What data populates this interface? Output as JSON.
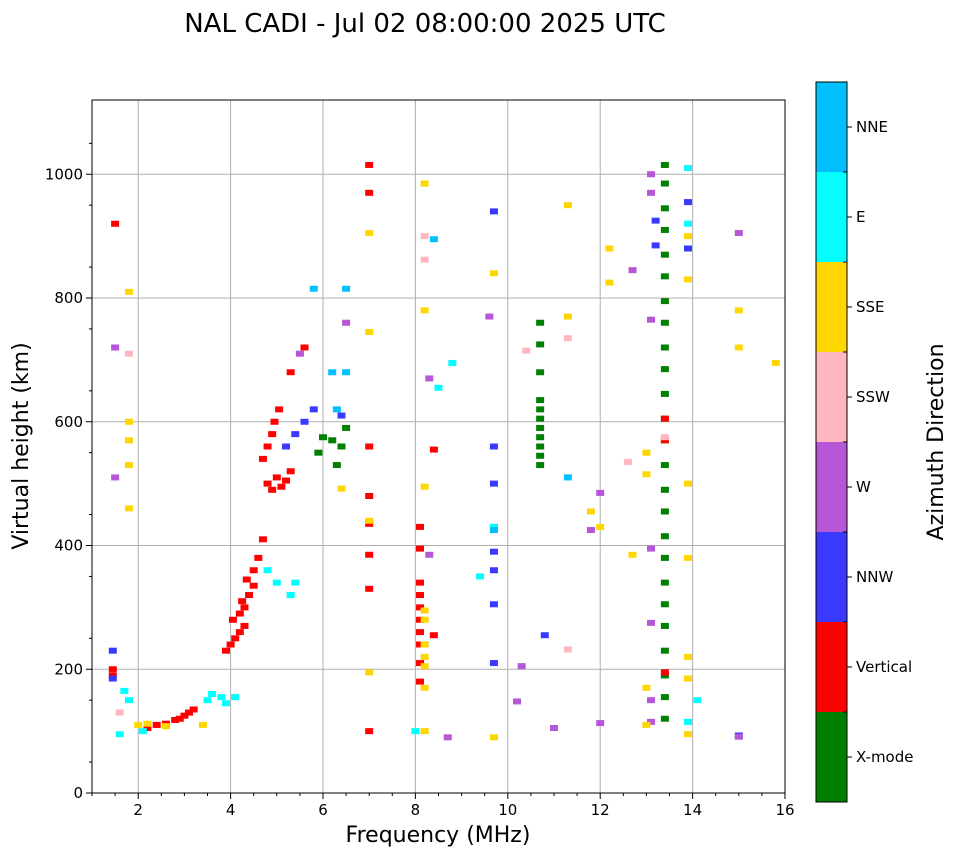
{
  "chart_data": {
    "type": "scatter",
    "title": "NAL CADI - Jul 02 08:00:00 2025 UTC",
    "xlabel": "Frequency (MHz)",
    "ylabel": "Virtual height (km)",
    "xlim": [
      1,
      16
    ],
    "ylim": [
      0,
      1120
    ],
    "xticks": [
      2,
      4,
      6,
      8,
      10,
      12,
      14,
      16
    ],
    "yticks": [
      0,
      200,
      400,
      600,
      800,
      1000
    ],
    "grid": true,
    "colorbar": {
      "label": "Azimuth Direction",
      "categories": [
        {
          "name": "X-mode",
          "color": "#008000"
        },
        {
          "name": "Vertical",
          "color": "#ff0000"
        },
        {
          "name": "NNW",
          "color": "#3a3aff"
        },
        {
          "name": "W",
          "color": "#b557d6"
        },
        {
          "name": "SSW",
          "color": "#ffb6c1"
        },
        {
          "name": "SSE",
          "color": "#ffd700"
        },
        {
          "name": "E",
          "color": "#00ffff"
        },
        {
          "name": "NNE",
          "color": "#00bfff"
        }
      ]
    },
    "series": [
      {
        "name": "X-mode",
        "points": [
          [
            6.3,
            530
          ],
          [
            6.4,
            560
          ],
          [
            6.2,
            570
          ],
          [
            6.5,
            590
          ],
          [
            5.9,
            550
          ],
          [
            6.0,
            575
          ],
          [
            10.7,
            530
          ],
          [
            10.7,
            545
          ],
          [
            10.7,
            560
          ],
          [
            10.7,
            575
          ],
          [
            10.7,
            590
          ],
          [
            10.7,
            605
          ],
          [
            10.7,
            620
          ],
          [
            10.7,
            635
          ],
          [
            10.7,
            680
          ],
          [
            10.7,
            725
          ],
          [
            10.7,
            760
          ],
          [
            13.4,
            120
          ],
          [
            13.4,
            155
          ],
          [
            13.4,
            190
          ],
          [
            13.4,
            230
          ],
          [
            13.4,
            270
          ],
          [
            13.4,
            305
          ],
          [
            13.4,
            340
          ],
          [
            13.4,
            380
          ],
          [
            13.4,
            415
          ],
          [
            13.4,
            455
          ],
          [
            13.4,
            490
          ],
          [
            13.4,
            530
          ],
          [
            13.4,
            570
          ],
          [
            13.4,
            605
          ],
          [
            13.4,
            645
          ],
          [
            13.4,
            685
          ],
          [
            13.4,
            720
          ],
          [
            13.4,
            760
          ],
          [
            13.4,
            795
          ],
          [
            13.4,
            835
          ],
          [
            13.4,
            870
          ],
          [
            13.4,
            910
          ],
          [
            13.4,
            945
          ],
          [
            13.4,
            985
          ],
          [
            13.4,
            1015
          ]
        ]
      },
      {
        "name": "Vertical",
        "points": [
          [
            1.5,
            920
          ],
          [
            1.45,
            200
          ],
          [
            1.45,
            190
          ],
          [
            2.2,
            105
          ],
          [
            2.4,
            110
          ],
          [
            2.6,
            112
          ],
          [
            2.8,
            118
          ],
          [
            2.9,
            120
          ],
          [
            3.0,
            125
          ],
          [
            3.1,
            130
          ],
          [
            3.2,
            135
          ],
          [
            3.9,
            230
          ],
          [
            4.0,
            240
          ],
          [
            4.1,
            250
          ],
          [
            4.2,
            260
          ],
          [
            4.3,
            270
          ],
          [
            4.05,
            280
          ],
          [
            4.2,
            290
          ],
          [
            4.3,
            300
          ],
          [
            4.25,
            310
          ],
          [
            4.4,
            320
          ],
          [
            4.5,
            335
          ],
          [
            4.35,
            345
          ],
          [
            4.5,
            360
          ],
          [
            4.6,
            380
          ],
          [
            4.7,
            410
          ],
          [
            4.8,
            500
          ],
          [
            4.9,
            490
          ],
          [
            5.0,
            510
          ],
          [
            5.1,
            495
          ],
          [
            5.2,
            505
          ],
          [
            5.3,
            520
          ],
          [
            4.7,
            540
          ],
          [
            4.8,
            560
          ],
          [
            4.9,
            580
          ],
          [
            4.95,
            600
          ],
          [
            5.05,
            620
          ],
          [
            5.3,
            680
          ],
          [
            5.6,
            720
          ],
          [
            7.0,
            100
          ],
          [
            7.0,
            330
          ],
          [
            7.0,
            385
          ],
          [
            7.0,
            435
          ],
          [
            7.0,
            480
          ],
          [
            7.0,
            560
          ],
          [
            7.0,
            970
          ],
          [
            7.0,
            1015
          ],
          [
            8.1,
            180
          ],
          [
            8.1,
            210
          ],
          [
            8.1,
            240
          ],
          [
            8.1,
            260
          ],
          [
            8.1,
            280
          ],
          [
            8.1,
            300
          ],
          [
            8.1,
            320
          ],
          [
            8.1,
            340
          ],
          [
            8.1,
            395
          ],
          [
            8.1,
            430
          ],
          [
            8.4,
            255
          ],
          [
            8.4,
            555
          ],
          [
            13.4,
            195
          ],
          [
            13.4,
            570
          ],
          [
            13.4,
            605
          ]
        ]
      },
      {
        "name": "NNW",
        "points": [
          [
            1.45,
            230
          ],
          [
            1.45,
            185
          ],
          [
            5.2,
            560
          ],
          [
            5.4,
            580
          ],
          [
            5.6,
            600
          ],
          [
            5.8,
            620
          ],
          [
            6.4,
            610
          ],
          [
            9.7,
            210
          ],
          [
            9.7,
            305
          ],
          [
            9.7,
            360
          ],
          [
            9.7,
            390
          ],
          [
            9.7,
            430
          ],
          [
            9.7,
            500
          ],
          [
            9.7,
            560
          ],
          [
            9.7,
            940
          ],
          [
            13.2,
            925
          ],
          [
            13.2,
            885
          ],
          [
            13.9,
            880
          ],
          [
            13.9,
            955
          ],
          [
            15.0,
            93
          ],
          [
            10.8,
            255
          ]
        ]
      },
      {
        "name": "W",
        "points": [
          [
            1.5,
            720
          ],
          [
            1.5,
            510
          ],
          [
            5.5,
            710
          ],
          [
            6.5,
            760
          ],
          [
            8.3,
            670
          ],
          [
            8.3,
            385
          ],
          [
            8.7,
            90
          ],
          [
            9.6,
            770
          ],
          [
            10.3,
            205
          ],
          [
            10.2,
            148
          ],
          [
            11.0,
            105
          ],
          [
            11.8,
            425
          ],
          [
            12.0,
            113
          ],
          [
            12.0,
            485
          ],
          [
            12.7,
            845
          ],
          [
            13.1,
            1000
          ],
          [
            13.1,
            970
          ],
          [
            13.1,
            765
          ],
          [
            13.1,
            395
          ],
          [
            13.1,
            275
          ],
          [
            13.1,
            150
          ],
          [
            13.1,
            115
          ],
          [
            15.0,
            905
          ],
          [
            15.0,
            91
          ]
        ]
      },
      {
        "name": "SSW",
        "points": [
          [
            1.8,
            710
          ],
          [
            1.6,
            130
          ],
          [
            8.2,
            900
          ],
          [
            8.2,
            862
          ],
          [
            10.4,
            715
          ],
          [
            11.3,
            232
          ],
          [
            11.3,
            735
          ],
          [
            12.6,
            535
          ],
          [
            13.4,
            575
          ]
        ]
      },
      {
        "name": "SSE",
        "points": [
          [
            1.8,
            600
          ],
          [
            1.8,
            570
          ],
          [
            1.8,
            530
          ],
          [
            1.8,
            460
          ],
          [
            1.8,
            810
          ],
          [
            2.0,
            110
          ],
          [
            2.2,
            112
          ],
          [
            2.6,
            108
          ],
          [
            3.4,
            110
          ],
          [
            6.4,
            492
          ],
          [
            7.0,
            195
          ],
          [
            7.0,
            440
          ],
          [
            7.0,
            745
          ],
          [
            7.0,
            905
          ],
          [
            8.2,
            100
          ],
          [
            8.2,
            170
          ],
          [
            8.2,
            205
          ],
          [
            8.2,
            220
          ],
          [
            8.2,
            240
          ],
          [
            8.2,
            280
          ],
          [
            8.2,
            295
          ],
          [
            8.2,
            495
          ],
          [
            8.2,
            780
          ],
          [
            8.2,
            985
          ],
          [
            9.7,
            90
          ],
          [
            9.7,
            840
          ],
          [
            11.3,
            770
          ],
          [
            11.3,
            950
          ],
          [
            11.8,
            455
          ],
          [
            12.0,
            430
          ],
          [
            12.2,
            880
          ],
          [
            12.2,
            825
          ],
          [
            12.7,
            385
          ],
          [
            13.0,
            550
          ],
          [
            13.0,
            515
          ],
          [
            13.0,
            170
          ],
          [
            13.0,
            110
          ],
          [
            13.9,
            95
          ],
          [
            13.9,
            185
          ],
          [
            13.9,
            220
          ],
          [
            13.9,
            380
          ],
          [
            13.9,
            500
          ],
          [
            13.9,
            830
          ],
          [
            13.9,
            900
          ],
          [
            15.0,
            780
          ],
          [
            15.0,
            720
          ],
          [
            15.8,
            695
          ]
        ]
      },
      {
        "name": "E",
        "points": [
          [
            1.7,
            165
          ],
          [
            1.8,
            150
          ],
          [
            1.6,
            95
          ],
          [
            2.1,
            100
          ],
          [
            3.5,
            150
          ],
          [
            3.6,
            160
          ],
          [
            3.8,
            155
          ],
          [
            3.9,
            145
          ],
          [
            4.1,
            155
          ],
          [
            4.8,
            360
          ],
          [
            5.0,
            340
          ],
          [
            5.3,
            320
          ],
          [
            5.4,
            340
          ],
          [
            8.0,
            100
          ],
          [
            8.8,
            695
          ],
          [
            8.5,
            655
          ],
          [
            9.4,
            350
          ],
          [
            9.7,
            430
          ],
          [
            13.9,
            1010
          ],
          [
            13.9,
            920
          ],
          [
            13.9,
            115
          ],
          [
            14.1,
            150
          ]
        ]
      },
      {
        "name": "NNE",
        "points": [
          [
            5.8,
            815
          ],
          [
            6.2,
            680
          ],
          [
            6.5,
            815
          ],
          [
            6.5,
            680
          ],
          [
            6.3,
            620
          ],
          [
            8.4,
            895
          ],
          [
            9.7,
            425
          ],
          [
            11.3,
            510
          ]
        ]
      }
    ]
  }
}
